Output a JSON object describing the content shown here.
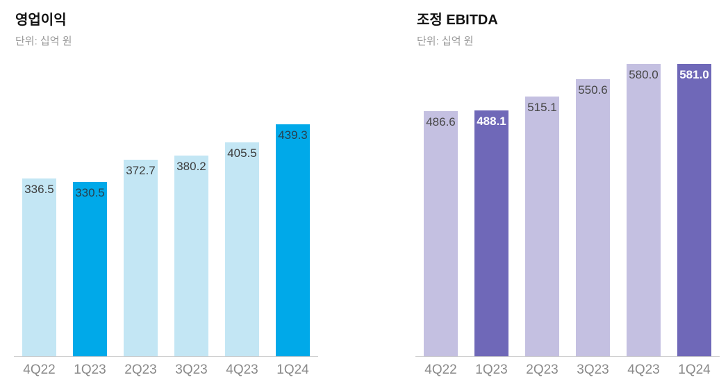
{
  "chart_data": [
    {
      "type": "bar",
      "title": "영업이익",
      "subtitle": "단위: 십억 원",
      "categories": [
        "4Q22",
        "1Q23",
        "2Q23",
        "3Q23",
        "4Q23",
        "1Q24"
      ],
      "values": [
        336.5,
        330.5,
        372.7,
        380.2,
        405.5,
        439.3
      ],
      "highlighted": [
        false,
        true,
        false,
        false,
        false,
        true
      ],
      "ylim": [
        0,
        576
      ],
      "grid": false,
      "legend": false,
      "value_label_decimals": 1,
      "label_highlight_bold": false,
      "colors": {
        "bar": "#C3E6F4",
        "bar_highlight": "#00A9E9",
        "label": "#3D3D3D",
        "label_highlight": "#27414F"
      }
    },
    {
      "type": "bar",
      "title": "조정 EBITDA",
      "subtitle": "단위: 십억 원",
      "categories": [
        "4Q22",
        "1Q23",
        "2Q23",
        "3Q23",
        "4Q23",
        "1Q24"
      ],
      "values": [
        486.6,
        488.1,
        515.1,
        550.6,
        580.0,
        581.0
      ],
      "highlighted": [
        false,
        true,
        false,
        false,
        false,
        true
      ],
      "ylim": [
        0,
        604
      ],
      "grid": false,
      "legend": false,
      "value_label_decimals": 1,
      "label_highlight_bold": true,
      "colors": {
        "bar": "#C4C0E1",
        "bar_highlight": "#6F68B8",
        "label": "#474747",
        "label_highlight": "#FFFFFF"
      }
    }
  ]
}
